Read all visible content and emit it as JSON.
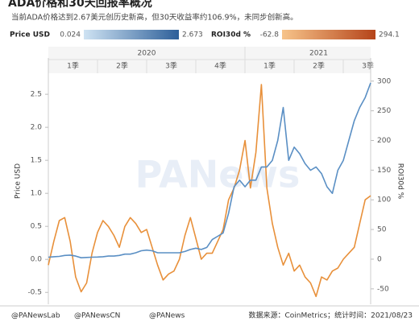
{
  "chart_data": {
    "type": "line",
    "title": "ADA价格和30天回报率概况",
    "subtitle": "当前ADA价格达到2.67美元创历史新高，但30天收益率约106.9%，未同步创新高。",
    "years": [
      "2020",
      "2021"
    ],
    "quarters": [
      "1季",
      "2季",
      "3季",
      "4季",
      "1季",
      "2季",
      "3季"
    ],
    "categories": [
      null,
      null,
      null,
      null,
      null,
      null,
      null,
      null,
      null,
      null,
      null,
      null,
      null,
      null,
      null,
      null,
      null,
      null,
      null,
      null,
      null,
      null,
      null,
      null,
      null,
      null,
      null,
      null,
      null,
      null,
      null,
      null,
      null,
      null,
      null,
      null,
      null,
      null,
      null,
      null,
      null,
      null,
      null,
      null,
      null,
      null,
      null,
      null,
      null,
      null,
      null,
      null,
      null,
      null,
      null,
      null,
      null,
      null,
      null,
      null
    ],
    "series": [
      {
        "name": "Price USD",
        "color": "#5a8fc4",
        "color_min": "#cfe3f3",
        "color_max": "#2d5f99",
        "min": 0.024,
        "max": 2.673,
        "values": [
          0.033,
          0.04,
          0.045,
          0.06,
          0.065,
          0.05,
          0.024,
          0.03,
          0.033,
          0.035,
          0.04,
          0.05,
          0.05,
          0.06,
          0.08,
          0.08,
          0.1,
          0.13,
          0.14,
          0.13,
          0.1,
          0.1,
          0.1,
          0.1,
          0.1,
          0.12,
          0.15,
          0.17,
          0.15,
          0.18,
          0.3,
          0.35,
          0.4,
          0.7,
          1.1,
          1.2,
          1.1,
          1.2,
          1.2,
          1.4,
          1.4,
          1.5,
          1.8,
          2.3,
          1.5,
          1.7,
          1.6,
          1.45,
          1.35,
          1.4,
          1.3,
          1.1,
          1.0,
          1.35,
          1.5,
          1.8,
          2.1,
          2.3,
          2.45,
          2.673
        ]
      },
      {
        "name": "ROI30d %",
        "color": "#e8903a",
        "color_min": "#f7c48a",
        "color_max": "#b5441a",
        "axis": "y2",
        "min": -62.8,
        "max": 294.1,
        "values": [
          -10,
          30,
          65,
          70,
          30,
          -30,
          -55,
          -40,
          10,
          45,
          65,
          55,
          40,
          20,
          55,
          70,
          60,
          45,
          50,
          20,
          -10,
          -35,
          -25,
          -20,
          0,
          40,
          70,
          35,
          0,
          10,
          10,
          30,
          50,
          100,
          120,
          150,
          200,
          120,
          180,
          294.1,
          120,
          60,
          20,
          -10,
          10,
          -20,
          -10,
          -30,
          -40,
          -62.8,
          -30,
          -35,
          -20,
          -15,
          0,
          10,
          20,
          60,
          100,
          106.9
        ]
      }
    ],
    "ylabel": "Price USD",
    "y2label": "ROI30d %",
    "ylim": [
      -0.68,
      3.05
    ],
    "yticks": [
      -0.5,
      {
        "value": 0,
        "label": "0.0"
      },
      0.5,
      {
        "value": 1,
        "label": "1.0"
      },
      1.5,
      {
        "value": 2,
        "label": "2.0"
      },
      2.5
    ],
    "y2lim": [
      -76,
      339
    ],
    "y2ticks": [
      -50,
      0,
      50,
      100,
      150,
      200,
      250,
      300
    ],
    "watermark": "PANews",
    "footer": {
      "handles": [
        "@PANewsLab",
        "@PANewsCN",
        "@PANews"
      ],
      "source": "数据来源：CoinMetrics；统计时间：2021/08/23"
    }
  }
}
